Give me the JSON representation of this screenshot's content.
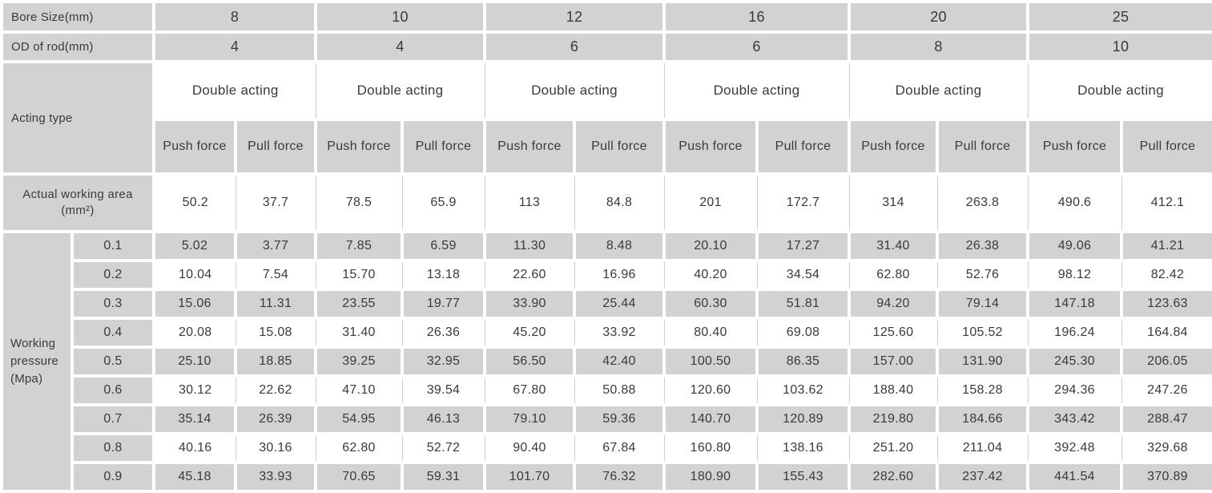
{
  "colors": {
    "cell_gray": "#d2d2d2",
    "grid_line_gray": "#cfcfcf",
    "text": "#3a3a3a",
    "white_cell": "#ffffff"
  },
  "header": {
    "bore_size_label": "Bore Size(mm)",
    "bore_sizes": [
      "8",
      "10",
      "12",
      "16",
      "20",
      "25"
    ],
    "od_rod_label": "OD of rod(mm)",
    "od_rods": [
      "4",
      "4",
      "6",
      "6",
      "8",
      "10"
    ],
    "acting_type_label": "Acting type",
    "acting_types": [
      "Double acting",
      "Double acting",
      "Double acting",
      "Double acting",
      "Double acting",
      "Double acting"
    ],
    "force_headers": [
      "Push force",
      "Pull force"
    ]
  },
  "working_area": {
    "label": "Actual working area",
    "unit": "(mm²)",
    "values": [
      "50.2",
      "37.7",
      "78.5",
      "65.9",
      "113",
      "84.8",
      "201",
      "172.7",
      "314",
      "263.8",
      "490.6",
      "412.1"
    ]
  },
  "working_pressure": {
    "label": "Working pressure (Mpa)",
    "rows": [
      {
        "pressure": "0.1",
        "values": [
          "5.02",
          "3.77",
          "7.85",
          "6.59",
          "11.30",
          "8.48",
          "20.10",
          "17.27",
          "31.40",
          "26.38",
          "49.06",
          "41.21"
        ]
      },
      {
        "pressure": "0.2",
        "values": [
          "10.04",
          "7.54",
          "15.70",
          "13.18",
          "22.60",
          "16.96",
          "40.20",
          "34.54",
          "62.80",
          "52.76",
          "98.12",
          "82.42"
        ]
      },
      {
        "pressure": "0.3",
        "values": [
          "15.06",
          "11.31",
          "23.55",
          "19.77",
          "33.90",
          "25.44",
          "60.30",
          "51.81",
          "94.20",
          "79.14",
          "147.18",
          "123.63"
        ]
      },
      {
        "pressure": "0.4",
        "values": [
          "20.08",
          "15.08",
          "31.40",
          "26.36",
          "45.20",
          "33.92",
          "80.40",
          "69.08",
          "125.60",
          "105.52",
          "196.24",
          "164.84"
        ]
      },
      {
        "pressure": "0.5",
        "values": [
          "25.10",
          "18.85",
          "39.25",
          "32.95",
          "56.50",
          "42.40",
          "100.50",
          "86.35",
          "157.00",
          "131.90",
          "245.30",
          "206.05"
        ]
      },
      {
        "pressure": "0.6",
        "values": [
          "30.12",
          "22.62",
          "47.10",
          "39.54",
          "67.80",
          "50.88",
          "120.60",
          "103.62",
          "188.40",
          "158.28",
          "294.36",
          "247.26"
        ]
      },
      {
        "pressure": "0.7",
        "values": [
          "35.14",
          "26.39",
          "54.95",
          "46.13",
          "79.10",
          "59.36",
          "140.70",
          "120.89",
          "219.80",
          "184.66",
          "343.42",
          "288.47"
        ]
      },
      {
        "pressure": "0.8",
        "values": [
          "40.16",
          "30.16",
          "62.80",
          "52.72",
          "90.40",
          "67.84",
          "160.80",
          "138.16",
          "251.20",
          "211.04",
          "392.48",
          "329.68"
        ]
      },
      {
        "pressure": "0.9",
        "values": [
          "45.18",
          "33.93",
          "70.65",
          "59.31",
          "101.70",
          "76.32",
          "180.90",
          "155.43",
          "282.60",
          "237.42",
          "441.54",
          "370.89"
        ]
      }
    ]
  }
}
